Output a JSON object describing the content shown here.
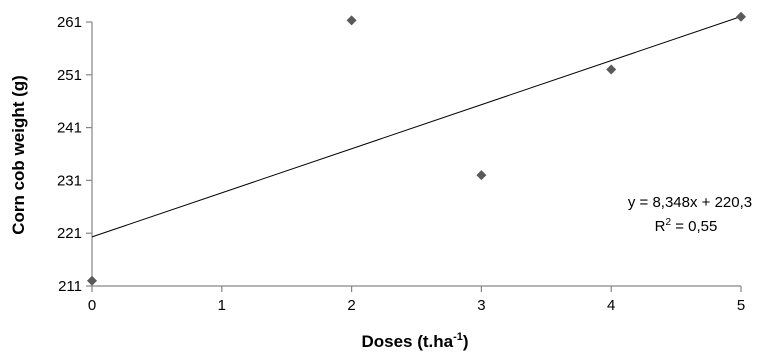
{
  "chart_data": {
    "type": "scatter",
    "title": "",
    "xlabel": "Doses (t.ha",
    "xlabel_sup": "-1",
    "xlabel_end": ")",
    "ylabel": "Corn cob weight  (g)",
    "xlim": [
      0,
      5
    ],
    "ylim": [
      211,
      261
    ],
    "x_ticks": [
      "0",
      "1",
      "2",
      "3",
      "4",
      "5"
    ],
    "y_ticks": [
      "211",
      "221",
      "231",
      "241",
      "251",
      "261"
    ],
    "points": [
      {
        "x": 0,
        "y": 212
      },
      {
        "x": 2,
        "y": 261.3
      },
      {
        "x": 3,
        "y": 232
      },
      {
        "x": 4,
        "y": 252
      },
      {
        "x": 5,
        "y": 262
      }
    ],
    "trendline": {
      "slope": 8.348,
      "intercept": 220.3
    },
    "equation": "y = 8,348x + 220,3",
    "r2_prefix": "R",
    "r2_sup": "2",
    "r2_value": " = 0,55",
    "grid": false,
    "legend": "none",
    "colors": {
      "marker": "#5a5a5a",
      "line": "#000000",
      "axis": "#868686"
    }
  }
}
